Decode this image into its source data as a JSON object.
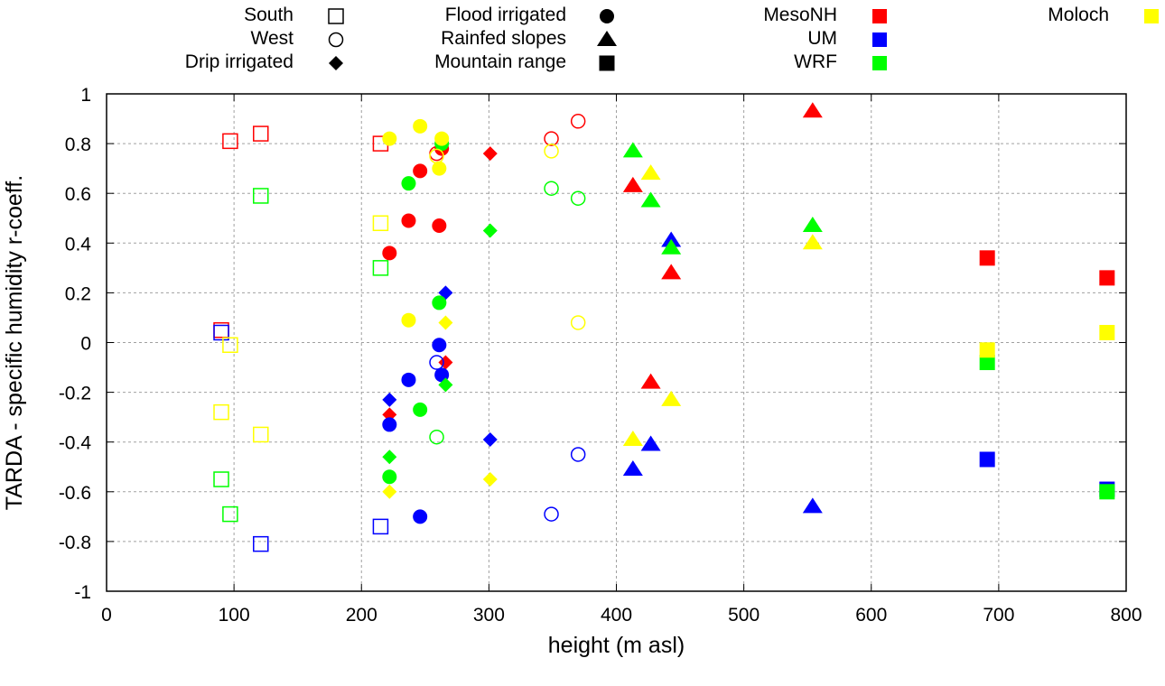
{
  "chart_data": {
    "type": "scatter",
    "title": "",
    "xlabel": "height (m asl)",
    "ylabel": "TARDA - specific humidity r-coeff.",
    "xlim": [
      0,
      800
    ],
    "ylim": [
      -1,
      1
    ],
    "xticks": [
      "0",
      "100",
      "200",
      "300",
      "400",
      "500",
      "600",
      "700",
      "800"
    ],
    "xtick_values": [
      0,
      100,
      200,
      300,
      400,
      500,
      600,
      700,
      800
    ],
    "yticks": [
      "1",
      "0.8",
      "0.6",
      "0.4",
      "0.2",
      "0",
      "-0.2",
      "-0.4",
      "-0.6",
      "-0.8",
      "-1"
    ],
    "ytick_values": [
      1,
      0.8,
      0.6,
      0.4,
      0.2,
      0,
      -0.2,
      -0.4,
      -0.6,
      -0.8,
      -1
    ],
    "grid": true,
    "legend_placement": "top",
    "legend": {
      "areas": [
        {
          "label": "South",
          "marker": "open-square"
        },
        {
          "label": "West",
          "marker": "open-circle"
        },
        {
          "label": "Drip irrigated",
          "marker": "diamond"
        },
        {
          "label": "Flood irrigated",
          "marker": "circle"
        },
        {
          "label": "Rainfed slopes",
          "marker": "triangle"
        },
        {
          "label": "Mountain range",
          "marker": "square"
        }
      ],
      "models": [
        {
          "label": "MesoNH",
          "color": "#ff0000"
        },
        {
          "label": "UM",
          "color": "#0000ff"
        },
        {
          "label": "WRF",
          "color": "#00ff00"
        },
        {
          "label": "Moloch",
          "color": "#ffff00"
        }
      ]
    },
    "series": [
      {
        "name": "MesoNH",
        "color": "#ff0000",
        "points": [
          {
            "area": "South",
            "x": 90,
            "y": 0.05
          },
          {
            "area": "South",
            "x": 97,
            "y": 0.81
          },
          {
            "area": "South",
            "x": 121,
            "y": 0.84
          },
          {
            "area": "South",
            "x": 215,
            "y": 0.8
          },
          {
            "area": "West",
            "x": 259,
            "y": 0.76
          },
          {
            "area": "West",
            "x": 349,
            "y": 0.82
          },
          {
            "area": "West",
            "x": 370,
            "y": 0.89
          },
          {
            "area": "Drip irrigated",
            "x": 222,
            "y": -0.29
          },
          {
            "area": "Drip irrigated",
            "x": 266,
            "y": -0.08
          },
          {
            "area": "Drip irrigated",
            "x": 301,
            "y": 0.76
          },
          {
            "area": "Flood irrigated",
            "x": 222,
            "y": 0.36
          },
          {
            "area": "Flood irrigated",
            "x": 237,
            "y": 0.49
          },
          {
            "area": "Flood irrigated",
            "x": 246,
            "y": 0.69
          },
          {
            "area": "Flood irrigated",
            "x": 261,
            "y": 0.47
          },
          {
            "area": "Flood irrigated",
            "x": 263,
            "y": 0.78
          },
          {
            "area": "Rainfed slopes",
            "x": 413,
            "y": 0.63
          },
          {
            "area": "Rainfed slopes",
            "x": 427,
            "y": -0.16
          },
          {
            "area": "Rainfed slopes",
            "x": 443,
            "y": 0.28
          },
          {
            "area": "Rainfed slopes",
            "x": 554,
            "y": 0.93
          },
          {
            "area": "Mountain range",
            "x": 691,
            "y": 0.34
          },
          {
            "area": "Mountain range",
            "x": 785,
            "y": 0.26
          }
        ]
      },
      {
        "name": "UM",
        "color": "#0000ff",
        "points": [
          {
            "area": "South",
            "x": 90,
            "y": 0.04
          },
          {
            "area": "South",
            "x": 121,
            "y": -0.81
          },
          {
            "area": "South",
            "x": 215,
            "y": -0.74
          },
          {
            "area": "West",
            "x": 259,
            "y": -0.08
          },
          {
            "area": "West",
            "x": 349,
            "y": -0.69
          },
          {
            "area": "West",
            "x": 370,
            "y": -0.45
          },
          {
            "area": "Drip irrigated",
            "x": 222,
            "y": -0.23
          },
          {
            "area": "Drip irrigated",
            "x": 266,
            "y": 0.2
          },
          {
            "area": "Drip irrigated",
            "x": 301,
            "y": -0.39
          },
          {
            "area": "Flood irrigated",
            "x": 222,
            "y": -0.33
          },
          {
            "area": "Flood irrigated",
            "x": 237,
            "y": -0.15
          },
          {
            "area": "Flood irrigated",
            "x": 246,
            "y": -0.7
          },
          {
            "area": "Flood irrigated",
            "x": 261,
            "y": -0.01
          },
          {
            "area": "Flood irrigated",
            "x": 263,
            "y": -0.13
          },
          {
            "area": "Rainfed slopes",
            "x": 413,
            "y": -0.51
          },
          {
            "area": "Rainfed slopes",
            "x": 427,
            "y": -0.41
          },
          {
            "area": "Rainfed slopes",
            "x": 443,
            "y": 0.41
          },
          {
            "area": "Rainfed slopes",
            "x": 554,
            "y": -0.66
          },
          {
            "area": "Mountain range",
            "x": 691,
            "y": -0.47
          },
          {
            "area": "Mountain range",
            "x": 785,
            "y": -0.59
          }
        ]
      },
      {
        "name": "WRF",
        "color": "#00ff00",
        "points": [
          {
            "area": "South",
            "x": 90,
            "y": -0.55
          },
          {
            "area": "South",
            "x": 97,
            "y": -0.69
          },
          {
            "area": "South",
            "x": 121,
            "y": 0.59
          },
          {
            "area": "South",
            "x": 215,
            "y": 0.3
          },
          {
            "area": "West",
            "x": 259,
            "y": -0.38
          },
          {
            "area": "West",
            "x": 349,
            "y": 0.62
          },
          {
            "area": "West",
            "x": 370,
            "y": 0.58
          },
          {
            "area": "Drip irrigated",
            "x": 222,
            "y": -0.46
          },
          {
            "area": "Drip irrigated",
            "x": 266,
            "y": -0.17
          },
          {
            "area": "Drip irrigated",
            "x": 301,
            "y": 0.45
          },
          {
            "area": "Flood irrigated",
            "x": 222,
            "y": -0.54
          },
          {
            "area": "Flood irrigated",
            "x": 237,
            "y": 0.64
          },
          {
            "area": "Flood irrigated",
            "x": 246,
            "y": -0.27
          },
          {
            "area": "Flood irrigated",
            "x": 261,
            "y": 0.16
          },
          {
            "area": "Flood irrigated",
            "x": 263,
            "y": 0.8
          },
          {
            "area": "Rainfed slopes",
            "x": 413,
            "y": 0.77
          },
          {
            "area": "Rainfed slopes",
            "x": 427,
            "y": 0.57
          },
          {
            "area": "Rainfed slopes",
            "x": 443,
            "y": 0.38
          },
          {
            "area": "Rainfed slopes",
            "x": 554,
            "y": 0.47
          },
          {
            "area": "Mountain range",
            "x": 691,
            "y": -0.08
          },
          {
            "area": "Mountain range",
            "x": 785,
            "y": -0.6
          }
        ]
      },
      {
        "name": "Moloch",
        "color": "#ffff00",
        "points": [
          {
            "area": "South",
            "x": 90,
            "y": -0.28
          },
          {
            "area": "South",
            "x": 97,
            "y": -0.01
          },
          {
            "area": "South",
            "x": 121,
            "y": -0.37
          },
          {
            "area": "South",
            "x": 215,
            "y": 0.48
          },
          {
            "area": "West",
            "x": 259,
            "y": 0.75
          },
          {
            "area": "West",
            "x": 349,
            "y": 0.77
          },
          {
            "area": "West",
            "x": 370,
            "y": 0.08
          },
          {
            "area": "Drip irrigated",
            "x": 222,
            "y": -0.6
          },
          {
            "area": "Drip irrigated",
            "x": 266,
            "y": 0.08
          },
          {
            "area": "Drip irrigated",
            "x": 301,
            "y": -0.55
          },
          {
            "area": "Flood irrigated",
            "x": 222,
            "y": 0.82
          },
          {
            "area": "Flood irrigated",
            "x": 237,
            "y": 0.09
          },
          {
            "area": "Flood irrigated",
            "x": 246,
            "y": 0.87
          },
          {
            "area": "Flood irrigated",
            "x": 261,
            "y": 0.7
          },
          {
            "area": "Flood irrigated",
            "x": 263,
            "y": 0.82
          },
          {
            "area": "Rainfed slopes",
            "x": 413,
            "y": -0.39
          },
          {
            "area": "Rainfed slopes",
            "x": 427,
            "y": 0.68
          },
          {
            "area": "Rainfed slopes",
            "x": 443,
            "y": -0.23
          },
          {
            "area": "Rainfed slopes",
            "x": 554,
            "y": 0.4
          },
          {
            "area": "Mountain range",
            "x": 691,
            "y": -0.03
          },
          {
            "area": "Mountain range",
            "x": 785,
            "y": 0.04
          }
        ]
      }
    ]
  }
}
